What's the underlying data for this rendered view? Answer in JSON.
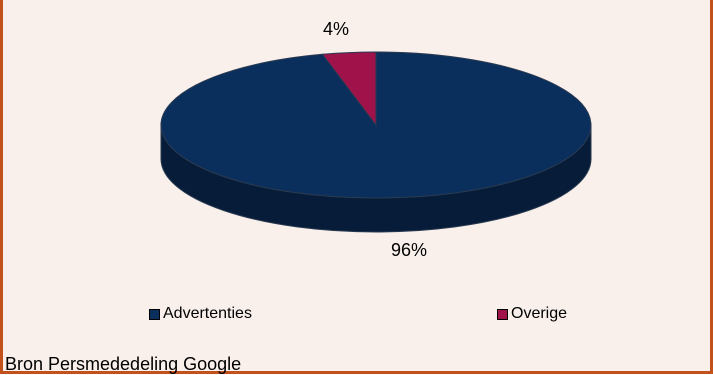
{
  "chart_data": {
    "type": "pie",
    "title": "",
    "slices": [
      {
        "label": "Advertenties",
        "value": 96,
        "value_label": "96%",
        "color": "#0a2f5c",
        "side_color": "#061c38"
      },
      {
        "label": "Overige",
        "value": 4,
        "value_label": "4%",
        "color": "#a0124a",
        "side_color": "#5c0a2a"
      }
    ],
    "legend_position": "bottom",
    "three_d": true
  },
  "legend": {
    "items": [
      {
        "label": "Advertenties",
        "color": "#0a2f5c"
      },
      {
        "label": "Overige",
        "color": "#a0124a"
      }
    ]
  },
  "labels": {
    "advertenties_pct": "96%",
    "overige_pct": "4%"
  },
  "footer": {
    "source": "Bron Persmededeling Google"
  },
  "colors": {
    "background": "#f9f0ec",
    "border": "#c2511c"
  }
}
